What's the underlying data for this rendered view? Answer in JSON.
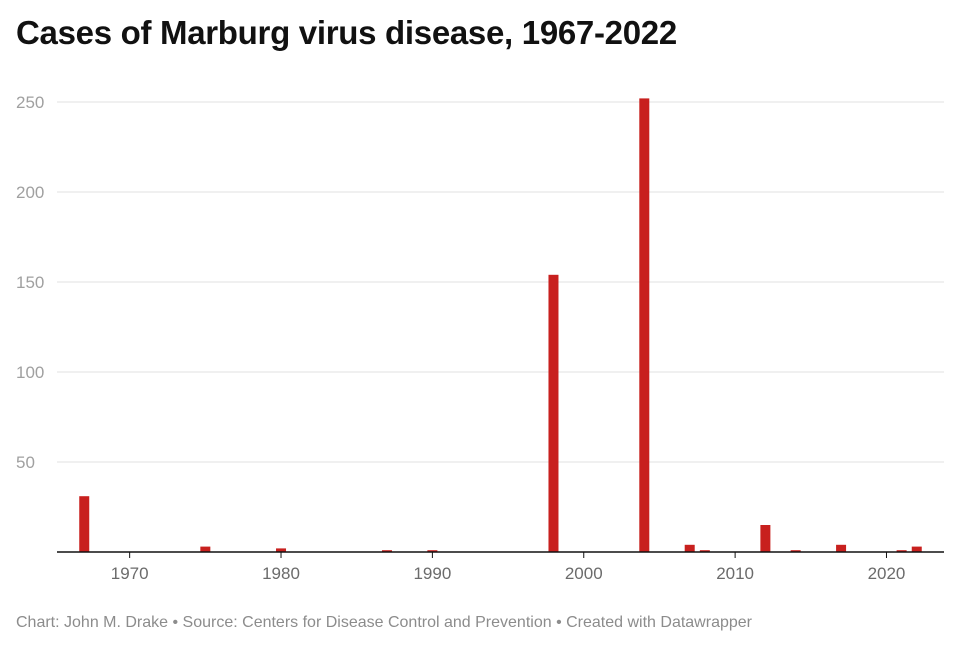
{
  "title": "Cases of Marburg virus disease, 1967-2022",
  "footer": "Chart: John M. Drake • Source: Centers for Disease Control and Prevention • Created with Datawrapper",
  "colors": {
    "bar": "#c8201e",
    "grid": "#e2e2e2",
    "axis": "#111111"
  },
  "chart_data": {
    "type": "bar",
    "title": "Cases of Marburg virus disease, 1967-2022",
    "xlabel": "",
    "ylabel": "",
    "xlim": [
      1966,
      2023
    ],
    "ylim": [
      0,
      250
    ],
    "yticks": [
      50,
      100,
      150,
      200,
      250
    ],
    "xticks": [
      1970,
      1980,
      1990,
      2000,
      2010,
      2020
    ],
    "grid": true,
    "legend": "none",
    "x": [
      1967,
      1975,
      1980,
      1987,
      1990,
      1998,
      2004,
      2007,
      2008,
      2012,
      2014,
      2017,
      2021,
      2022
    ],
    "values": [
      31,
      3,
      2,
      1,
      1,
      154,
      252,
      4,
      1,
      15,
      1,
      4,
      1,
      3
    ]
  }
}
